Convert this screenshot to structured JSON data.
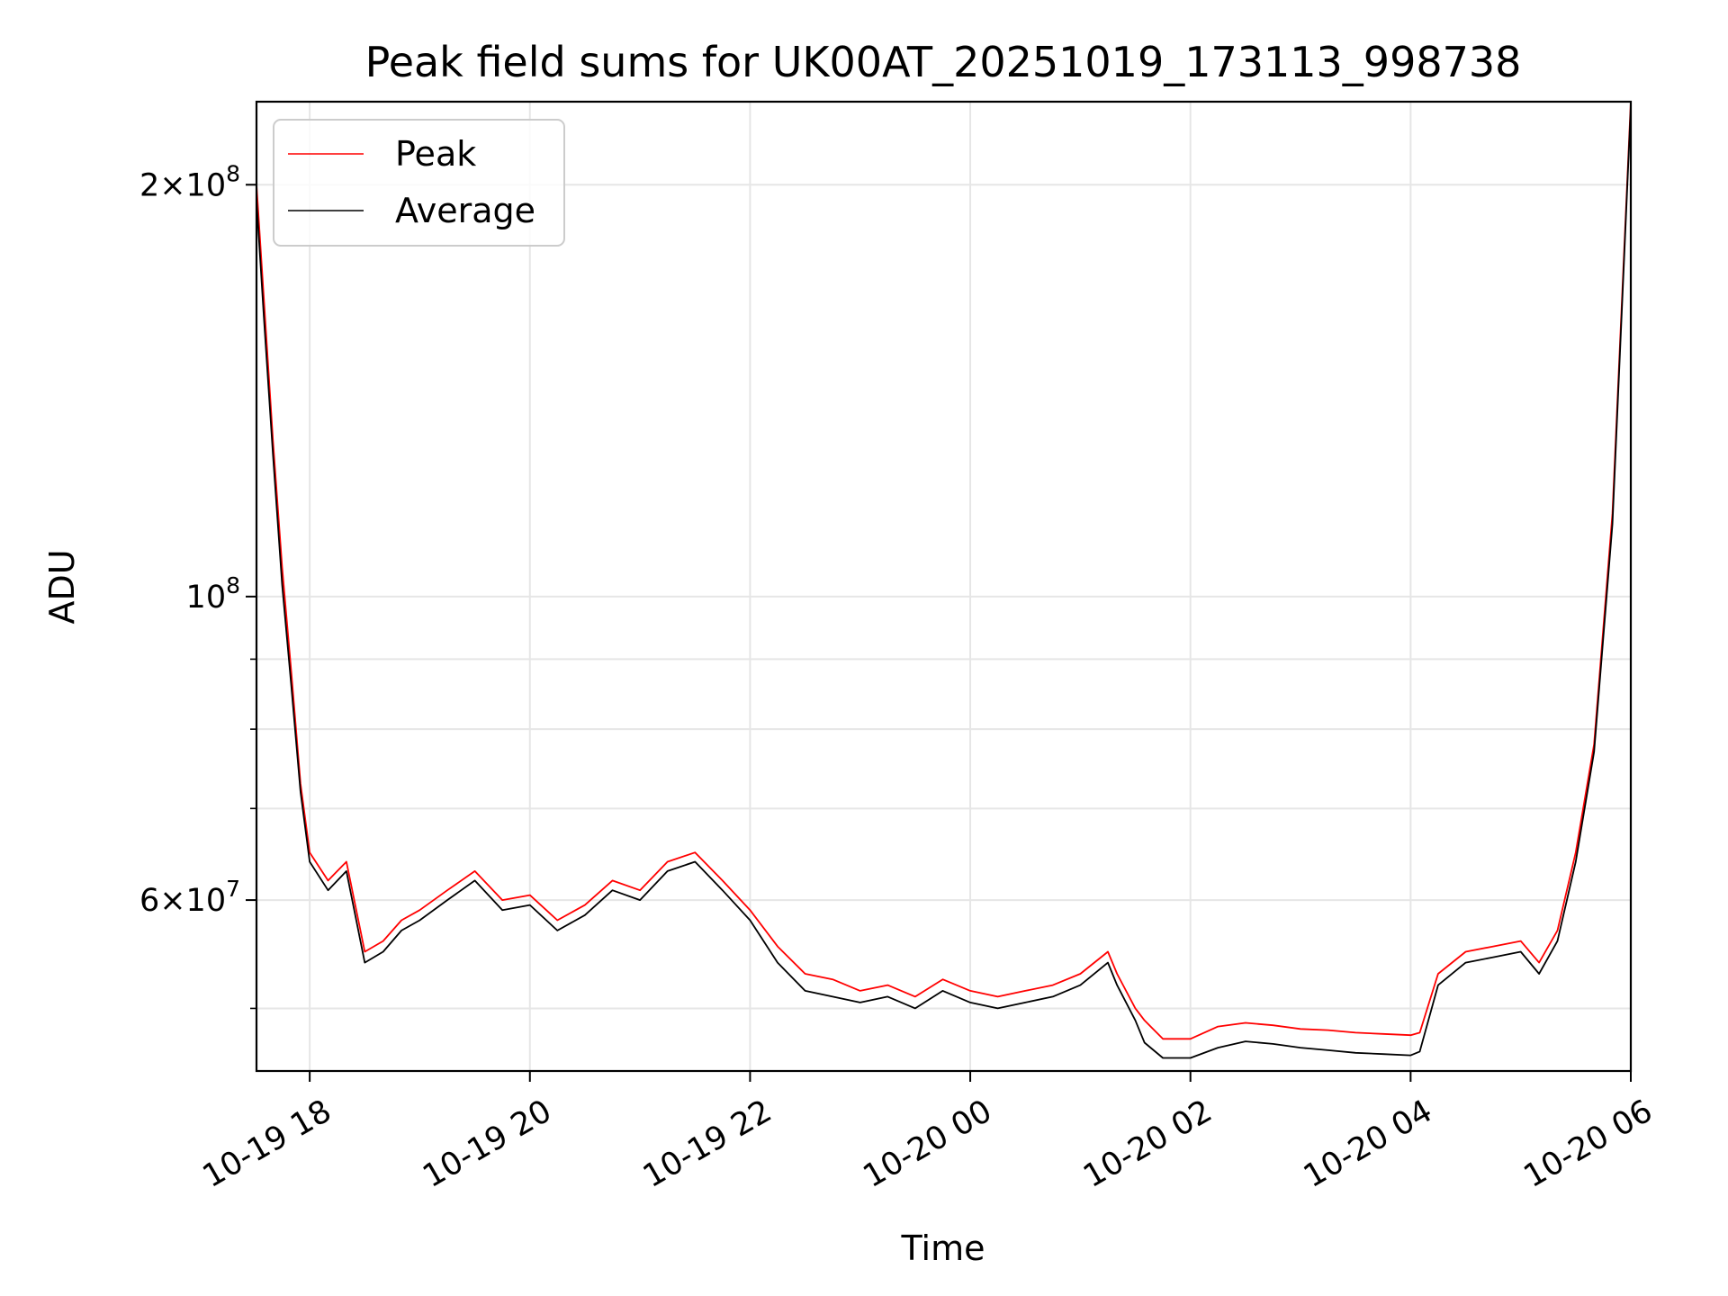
{
  "chart_data": {
    "type": "line",
    "title": "Peak field sums for UK00AT_20251019_173113_998738",
    "xlabel": "Time",
    "ylabel": "ADU",
    "yscale": "log",
    "grid": true,
    "legend_position": "top-left",
    "xlim": [
      "2025-10-19 17:31",
      "2025-10-20 06:00"
    ],
    "ylim": [
      45000000,
      230000000
    ],
    "x_ticks": [
      "10-19 18",
      "10-19 20",
      "10-19 22",
      "10-20 00",
      "10-20 02",
      "10-20 04",
      "10-20 06"
    ],
    "x_tick_values": [
      "2025-10-19 18:00",
      "2025-10-19 20:00",
      "2025-10-19 22:00",
      "2025-10-20 00:00",
      "2025-10-20 02:00",
      "2025-10-20 04:00",
      "2025-10-20 06:00"
    ],
    "y_major_ticks": [
      {
        "value": 200000000,
        "mantissa": "2",
        "exponent": "8"
      },
      {
        "value": 100000000,
        "mantissa": "",
        "exponent": "8"
      },
      {
        "value": 60000000,
        "mantissa": "6",
        "exponent": "7"
      }
    ],
    "y_minor_ticks": [
      50000000,
      70000000,
      80000000,
      90000000
    ],
    "x": [
      "2025-10-19 17:31",
      "2025-10-19 17:35",
      "2025-10-19 17:40",
      "2025-10-19 17:45",
      "2025-10-19 17:50",
      "2025-10-19 17:55",
      "2025-10-19 18:00",
      "2025-10-19 18:10",
      "2025-10-19 18:20",
      "2025-10-19 18:30",
      "2025-10-19 18:40",
      "2025-10-19 18:50",
      "2025-10-19 19:00",
      "2025-10-19 19:15",
      "2025-10-19 19:30",
      "2025-10-19 19:45",
      "2025-10-19 20:00",
      "2025-10-19 20:15",
      "2025-10-19 20:30",
      "2025-10-19 20:45",
      "2025-10-19 21:00",
      "2025-10-19 21:15",
      "2025-10-19 21:30",
      "2025-10-19 21:45",
      "2025-10-19 22:00",
      "2025-10-19 22:15",
      "2025-10-19 22:30",
      "2025-10-19 22:45",
      "2025-10-19 23:00",
      "2025-10-19 23:15",
      "2025-10-19 23:30",
      "2025-10-19 23:45",
      "2025-10-20 00:00",
      "2025-10-20 00:15",
      "2025-10-20 00:30",
      "2025-10-20 00:45",
      "2025-10-20 01:00",
      "2025-10-20 01:15",
      "2025-10-20 01:20",
      "2025-10-20 01:30",
      "2025-10-20 01:35",
      "2025-10-20 01:45",
      "2025-10-20 02:00",
      "2025-10-20 02:15",
      "2025-10-20 02:30",
      "2025-10-20 02:45",
      "2025-10-20 03:00",
      "2025-10-20 03:15",
      "2025-10-20 03:30",
      "2025-10-20 03:45",
      "2025-10-20 04:00",
      "2025-10-20 04:05",
      "2025-10-20 04:15",
      "2025-10-20 04:30",
      "2025-10-20 04:45",
      "2025-10-20 05:00",
      "2025-10-20 05:10",
      "2025-10-20 05:20",
      "2025-10-20 05:30",
      "2025-10-20 05:40",
      "2025-10-20 05:50",
      "2025-10-20 06:00"
    ],
    "series": [
      {
        "name": "Peak",
        "color": "#ff0000",
        "values": [
          200000000,
          165000000,
          130000000,
          105000000,
          88000000,
          73000000,
          65000000,
          62000000,
          64000000,
          55000000,
          56000000,
          58000000,
          59000000,
          61000000,
          63000000,
          60000000,
          60500000,
          58000000,
          59500000,
          62000000,
          61000000,
          64000000,
          65000000,
          62000000,
          59000000,
          55500000,
          53000000,
          52500000,
          51500000,
          52000000,
          51000000,
          52500000,
          51500000,
          51000000,
          51500000,
          52000000,
          53000000,
          55000000,
          53000000,
          50000000,
          49000000,
          47500000,
          47500000,
          48500000,
          48800000,
          48600000,
          48300000,
          48200000,
          48000000,
          47900000,
          47800000,
          48000000,
          53000000,
          55000000,
          55500000,
          56000000,
          54000000,
          57000000,
          65000000,
          78000000,
          115000000,
          230000000
        ]
      },
      {
        "name": "Average",
        "color": "#000000",
        "values": [
          195000000,
          160000000,
          127000000,
          102000000,
          86000000,
          72000000,
          64000000,
          61000000,
          63000000,
          54000000,
          55000000,
          57000000,
          58000000,
          60000000,
          62000000,
          59000000,
          59500000,
          57000000,
          58500000,
          61000000,
          60000000,
          63000000,
          64000000,
          61000000,
          58000000,
          54000000,
          51500000,
          51000000,
          50500000,
          51000000,
          50000000,
          51500000,
          50500000,
          50000000,
          50500000,
          51000000,
          52000000,
          54000000,
          52000000,
          49000000,
          47200000,
          46000000,
          46000000,
          46800000,
          47300000,
          47100000,
          46800000,
          46600000,
          46400000,
          46300000,
          46200000,
          46500000,
          52000000,
          54000000,
          54500000,
          55000000,
          53000000,
          56000000,
          64000000,
          77000000,
          113000000,
          228000000
        ]
      }
    ]
  }
}
